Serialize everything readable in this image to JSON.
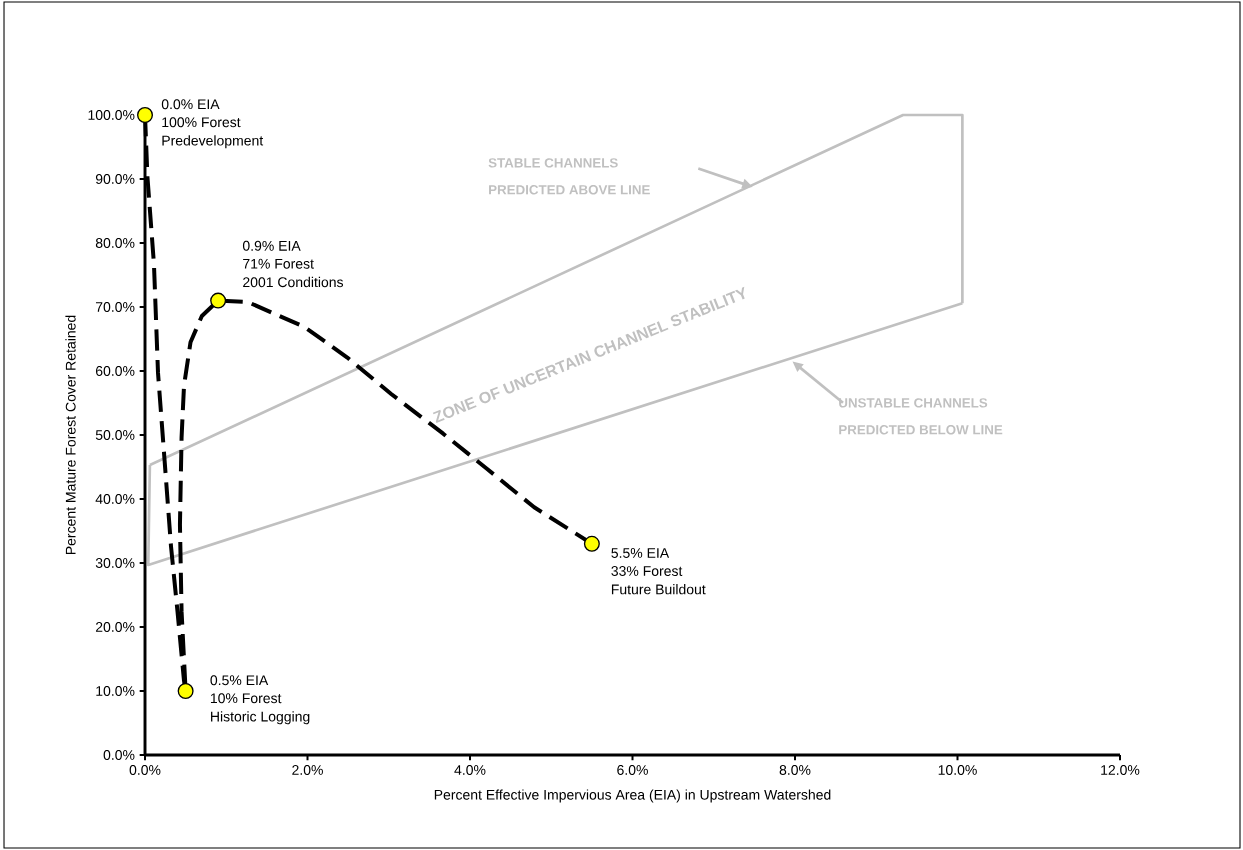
{
  "chart_data": {
    "type": "line",
    "xlabel": "Percent Effective Impervious Area (EIA) in Upstream Watershed",
    "ylabel": "Percent Mature Forest Cover Retained",
    "xlim": [
      0,
      12
    ],
    "ylim": [
      0,
      100
    ],
    "xticks": [
      {
        "value": 0,
        "label": "0.0%"
      },
      {
        "value": 2,
        "label": "2.0%"
      },
      {
        "value": 4,
        "label": "4.0%"
      },
      {
        "value": 6,
        "label": "6.0%"
      },
      {
        "value": 8,
        "label": "8.0%"
      },
      {
        "value": 10,
        "label": "10.0%"
      },
      {
        "value": 12,
        "label": "12.0%"
      }
    ],
    "yticks": [
      {
        "value": 0,
        "label": "0.0%"
      },
      {
        "value": 10,
        "label": "10.0%"
      },
      {
        "value": 20,
        "label": "20.0%"
      },
      {
        "value": 30,
        "label": "30.0%"
      },
      {
        "value": 40,
        "label": "40.0%"
      },
      {
        "value": 50,
        "label": "50.0%"
      },
      {
        "value": 60,
        "label": "60.0%"
      },
      {
        "value": 70,
        "label": "70.0%"
      },
      {
        "value": 80,
        "label": "80.0%"
      },
      {
        "value": 90,
        "label": "90.0%"
      },
      {
        "value": 100,
        "label": "100.0%"
      }
    ],
    "grid": false,
    "series": [
      {
        "type": "line",
        "color": "#c0c0c0",
        "line_style": "solid",
        "marker": "none",
        "x": [
          0.06,
          9.33,
          10.06,
          10.06
        ],
        "values": [
          45.3,
          100,
          100,
          70.6
        ]
      },
      {
        "type": "line",
        "color": "#c0c0c0",
        "line_style": "solid",
        "marker": "none",
        "x": [
          0.06,
          0.04,
          10.06
        ],
        "values": [
          45.3,
          29.7,
          70.6
        ]
      },
      {
        "type": "line",
        "color": "#000000",
        "line_style": "dashed",
        "marker": "none",
        "x": [
          0,
          0.03,
          0.11,
          0.16,
          0.24,
          0.32,
          0.4,
          0.48,
          0.5,
          0.45,
          0.43,
          0.45,
          0.48,
          0.56,
          0.7,
          0.9,
          1.26,
          1.96,
          2.49,
          3.03,
          3.67,
          4.2,
          4.79,
          5.5
        ],
        "values": [
          100,
          90.3,
          76.7,
          59.7,
          46.2,
          32.6,
          22.4,
          11.6,
          10,
          22.4,
          36,
          49.6,
          57.7,
          64.5,
          68.6,
          71,
          70.8,
          66.9,
          62.1,
          56.4,
          50.2,
          44.8,
          38.7,
          33
        ]
      },
      {
        "type": "scatter",
        "color": "#ffff00",
        "marker": "circle",
        "x": [
          0,
          0.5,
          0.9,
          5.5
        ],
        "values": [
          100,
          10,
          71,
          33
        ]
      }
    ],
    "annotations": [
      "0.0% EIA",
      "100% Forest",
      "Predevelopment",
      "0.5% EIA",
      "10% Forest",
      "Historic Logging",
      "0.9% EIA",
      "71% Forest",
      "2001 Conditions",
      "5.5% EIA",
      "33% Forest",
      "Future Buildout",
      "STABLE CHANNELS",
      "PREDICTED ABOVE LINE",
      "ZONE OF UNCERTAIN CHANNEL STABILITY",
      "UNSTABLE CHANNELS",
      "PREDICTED BELOW LINE"
    ]
  }
}
